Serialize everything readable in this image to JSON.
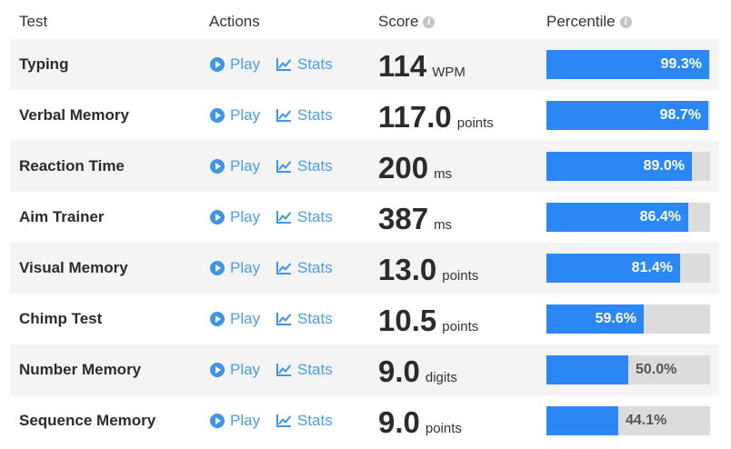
{
  "header": {
    "test": "Test",
    "actions": "Actions",
    "score": "Score",
    "percentile": "Percentile",
    "info_icon": "info-icon"
  },
  "actions": {
    "play_label": "Play",
    "stats_label": "Stats",
    "play_icon": "play-circle-icon",
    "stats_icon": "line-chart-icon"
  },
  "colors": {
    "accent": "#4a9ee8",
    "bar_fill": "#2b87f3",
    "bar_track": "#dcdcdc",
    "row_shade": "#f4f4f4"
  },
  "rows": [
    {
      "name": "Typing",
      "score": "114",
      "unit": "WPM",
      "percentile_label": "99.3%",
      "percentile": 99.3
    },
    {
      "name": "Verbal Memory",
      "score": "117.0",
      "unit": "points",
      "percentile_label": "98.7%",
      "percentile": 98.7
    },
    {
      "name": "Reaction Time",
      "score": "200",
      "unit": "ms",
      "percentile_label": "89.0%",
      "percentile": 89.0
    },
    {
      "name": "Aim Trainer",
      "score": "387",
      "unit": "ms",
      "percentile_label": "86.4%",
      "percentile": 86.4
    },
    {
      "name": "Visual Memory",
      "score": "13.0",
      "unit": "points",
      "percentile_label": "81.4%",
      "percentile": 81.4
    },
    {
      "name": "Chimp Test",
      "score": "10.5",
      "unit": "points",
      "percentile_label": "59.6%",
      "percentile": 59.6
    },
    {
      "name": "Number Memory",
      "score": "9.0",
      "unit": "digits",
      "percentile_label": "50.0%",
      "percentile": 50.0
    },
    {
      "name": "Sequence Memory",
      "score": "9.0",
      "unit": "points",
      "percentile_label": "44.1%",
      "percentile": 44.1
    }
  ]
}
